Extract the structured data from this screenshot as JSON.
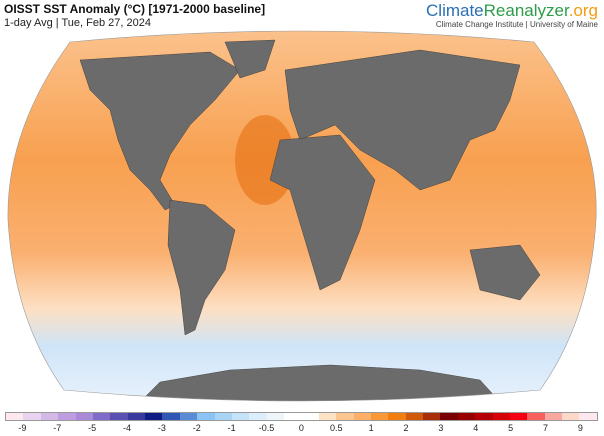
{
  "header": {
    "title": "OISST SST Anomaly (°C) [1971-2000 baseline]",
    "subtitle": "1-day Avg | Tue, Feb 27, 2024"
  },
  "brand": {
    "name_part1": "Climate",
    "name_part2": "Reanalyzer",
    "name_part3": ".org",
    "institution": "Climate Change Institute | University of Maine"
  },
  "legend": {
    "colors": [
      "#fde8ef",
      "#e8d4ee",
      "#d4b8e6",
      "#c09ce0",
      "#a98ad8",
      "#7e6cc8",
      "#5a50b4",
      "#3a3a9e",
      "#101c86",
      "#3056b4",
      "#5a8cd6",
      "#8ac4f4",
      "#a8d4f6",
      "#c4e2f8",
      "#dceefa",
      "#eef6fc",
      "#ffffff",
      "#ffffff",
      "#fde2c6",
      "#fcc690",
      "#fbb06a",
      "#f89838",
      "#f07e10",
      "#d05a0a",
      "#a82e08",
      "#7a0000",
      "#960000",
      "#b40004",
      "#d80008",
      "#f40010",
      "#f86060",
      "#f8a8a0",
      "#fcd8c8",
      "#fde8ee"
    ],
    "ticks": [
      "-9",
      "-7",
      "-5",
      "-4",
      "-3",
      "-2",
      "-1",
      "-0.5",
      "0",
      "0.5",
      "1",
      "2",
      "3",
      "4",
      "5",
      "7",
      "9"
    ]
  },
  "colors": {
    "land": "#6b6b6b",
    "ocean_warm": "#f9a45a",
    "ocean_cool": "#cfe4f8"
  }
}
